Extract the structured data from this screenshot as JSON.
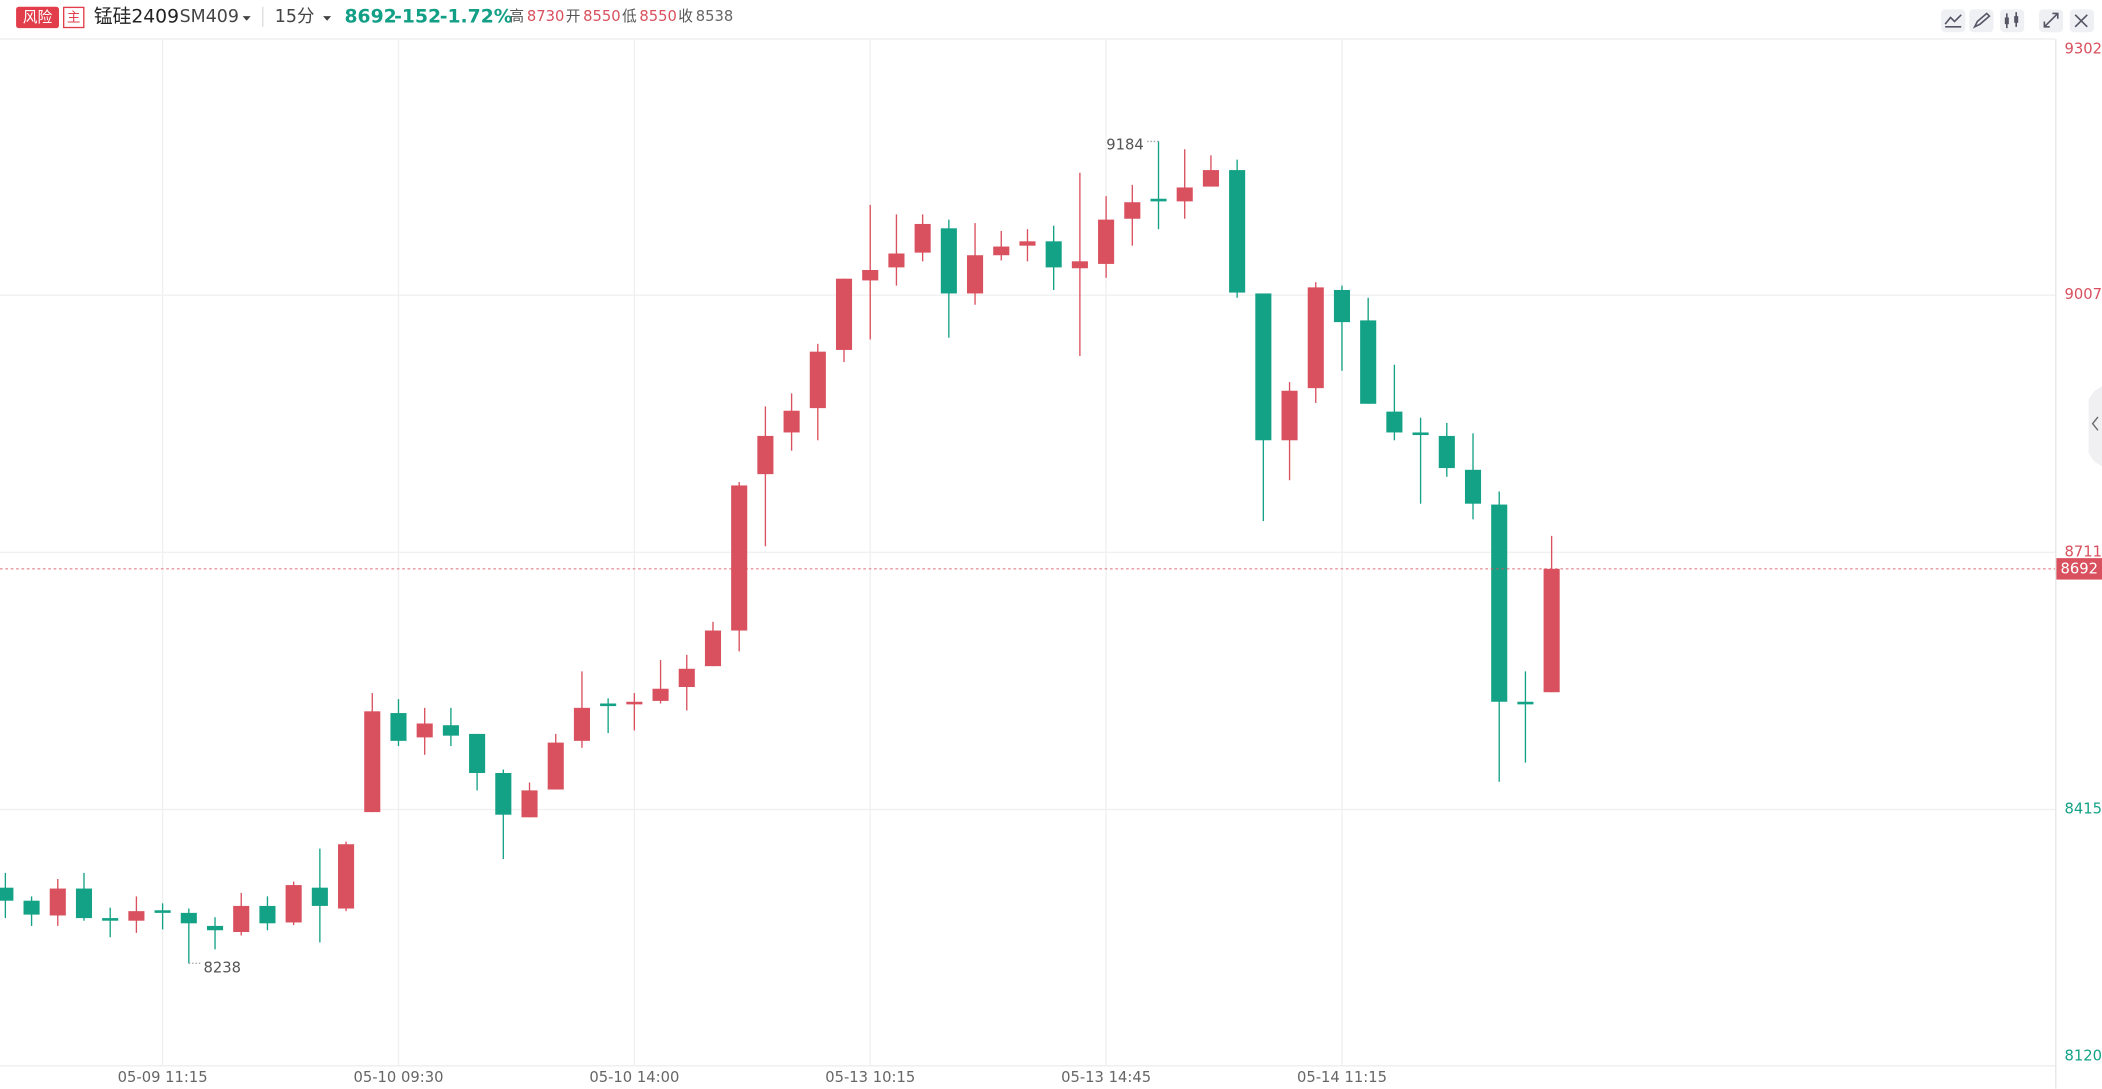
{
  "header": {
    "risk": "风险",
    "main": "主",
    "name": "锰硅2409",
    "code": "SM409",
    "period": "15分",
    "last": 8692,
    "change": -152,
    "change_pct": "-1.72%",
    "high_label": "高",
    "high": 8730,
    "open_label": "开",
    "open": 8550,
    "low_label": "低",
    "low": 8550,
    "close_label": "收",
    "close": 8538
  },
  "chart_data": {
    "type": "candlestick",
    "categories": [
      null,
      null,
      null,
      null,
      null,
      null,
      "05-09 11:15",
      null,
      null,
      null,
      null,
      null,
      null,
      null,
      null,
      "05-10 09:30",
      null,
      null,
      null,
      null,
      null,
      null,
      null,
      null,
      "05-10 14:00",
      null,
      null,
      null,
      null,
      null,
      null,
      null,
      null,
      "05-13 10:15",
      null,
      null,
      null,
      null,
      null,
      null,
      null,
      null,
      "05-13 14:45",
      null,
      null,
      null,
      null,
      null,
      null,
      null,
      null,
      "05-14 11:15",
      null,
      null,
      null,
      null,
      null,
      null,
      null,
      null
    ],
    "open": [
      8325,
      8310,
      8293,
      8324,
      8290,
      8287,
      8299,
      8296,
      8281,
      8274,
      8304,
      8285,
      8325,
      8301,
      8412,
      8526,
      8498,
      8512,
      8502,
      8457,
      8406,
      8438,
      8494,
      8537,
      8536,
      8540,
      8556,
      8580,
      8621,
      8801,
      8849,
      8877,
      8944,
      9024,
      9039,
      9056,
      9084,
      9009,
      9053,
      9064,
      9069,
      9038,
      9043,
      9095,
      9118,
      9115,
      9132,
      9151,
      9009,
      8840,
      8900,
      9013,
      8978,
      8873,
      8849,
      8845,
      8806,
      8766,
      8539,
      8550
    ],
    "high": [
      8342,
      8315,
      8335,
      8342,
      8302,
      8315,
      8307,
      8301,
      8291,
      8319,
      8315,
      8332,
      8370,
      8378,
      8549,
      8542,
      8532,
      8532,
      8502,
      8461,
      8446,
      8502,
      8574,
      8543,
      8549,
      8587,
      8593,
      8631,
      8792,
      8879,
      8894,
      8951,
      9026,
      9111,
      9100,
      9100,
      9094,
      9090,
      9081,
      9083,
      9087,
      9148,
      9121,
      9134,
      9184,
      9175,
      9168,
      9163,
      9009,
      8907,
      9022,
      9018,
      9004,
      8927,
      8866,
      8860,
      8848,
      8781,
      8574,
      8730
    ],
    "low": [
      8290,
      8281,
      8281,
      8287,
      8268,
      8273,
      8277,
      8238,
      8254,
      8270,
      8276,
      8282,
      8262,
      8298,
      8412,
      8488,
      8478,
      8488,
      8437,
      8358,
      8406,
      8438,
      8486,
      8503,
      8506,
      8537,
      8529,
      8580,
      8597,
      8718,
      8828,
      8840,
      8930,
      8956,
      9018,
      9046,
      8958,
      8996,
      9047,
      9046,
      9013,
      8937,
      9027,
      9064,
      9083,
      9095,
      9132,
      9004,
      8747,
      8794,
      8883,
      8920,
      8882,
      8840,
      8767,
      8798,
      8749,
      8447,
      8469,
      8550
    ],
    "close": [
      8310,
      8294,
      8324,
      8290,
      8287,
      8298,
      8296,
      8284,
      8276,
      8304,
      8284,
      8328,
      8304,
      8375,
      8528,
      8494,
      8514,
      8500,
      8457,
      8409,
      8437,
      8492,
      8532,
      8534,
      8539,
      8554,
      8577,
      8621,
      8788,
      8845,
      8874,
      8942,
      9026,
      9036,
      9055,
      9089,
      9009,
      9053,
      9063,
      9069,
      9039,
      9046,
      9094,
      9114,
      9115,
      9131,
      9151,
      9010,
      8840,
      8897,
      9016,
      8976,
      8882,
      8849,
      8846,
      8808,
      8767,
      8539,
      8536,
      8692
    ],
    "up_color": "#d9505e",
    "down_color": "#14a286",
    "ylim": [
      8120,
      9302
    ],
    "yticks": [
      8120,
      8415,
      8711,
      9007,
      9302
    ],
    "grid": true
  }
}
